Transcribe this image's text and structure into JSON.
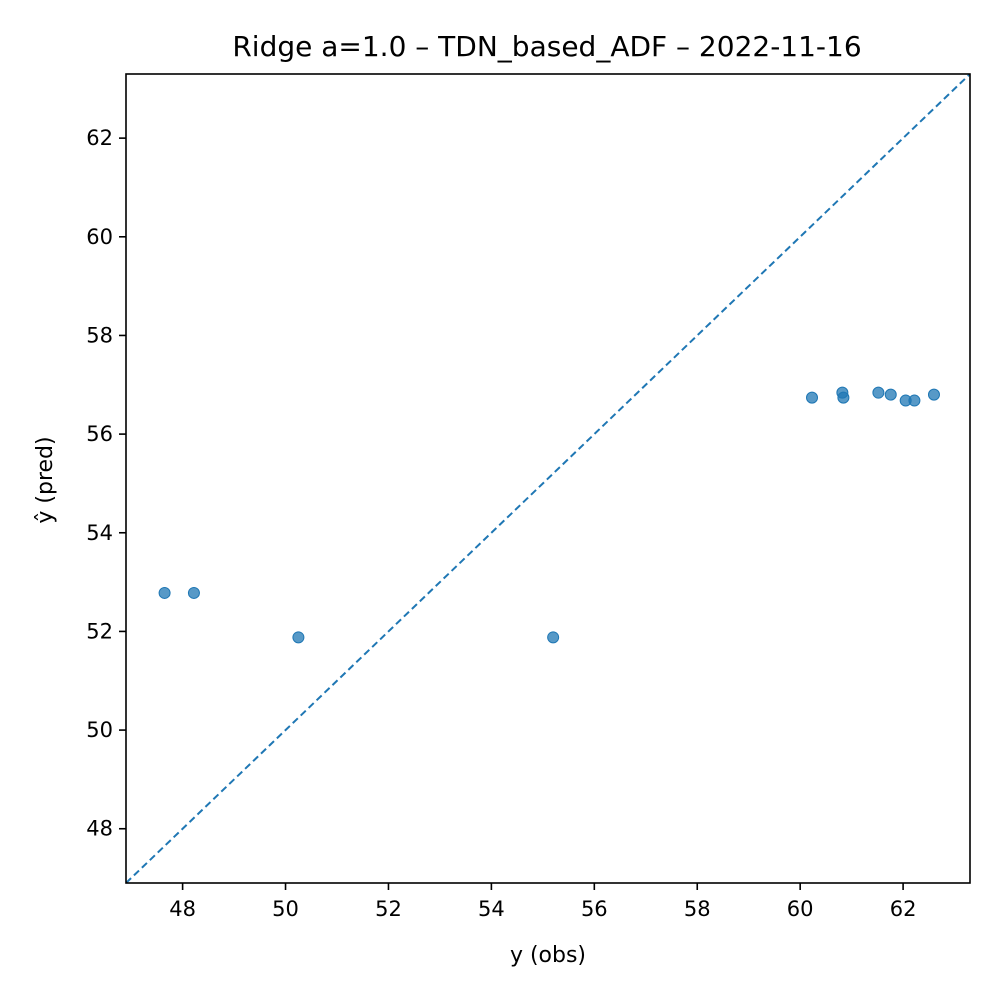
{
  "chart_data": {
    "type": "scatter",
    "title": "Ridge a=1.0 – TDN_based_ADF – 2022-11-16",
    "xlabel": "y (obs)",
    "ylabel": "ŷ (pred)",
    "xlim": [
      46.9,
      63.3
    ],
    "ylim": [
      46.9,
      63.3
    ],
    "xticks": [
      48,
      50,
      52,
      54,
      56,
      58,
      60,
      62
    ],
    "yticks": [
      48,
      50,
      52,
      54,
      56,
      58,
      60,
      62
    ],
    "grid": false,
    "reference_line": {
      "style": "dashed",
      "from": [
        46.9,
        46.9
      ],
      "to": [
        63.3,
        63.3
      ]
    },
    "series": [
      {
        "points": [
          {
            "x": 47.65,
            "y": 52.78
          },
          {
            "x": 48.22,
            "y": 52.78
          },
          {
            "x": 50.25,
            "y": 51.88
          },
          {
            "x": 55.2,
            "y": 51.88
          },
          {
            "x": 60.23,
            "y": 56.74
          },
          {
            "x": 60.82,
            "y": 56.84
          },
          {
            "x": 60.84,
            "y": 56.74
          },
          {
            "x": 61.52,
            "y": 56.84
          },
          {
            "x": 61.76,
            "y": 56.8
          },
          {
            "x": 62.05,
            "y": 56.68
          },
          {
            "x": 62.22,
            "y": 56.68
          },
          {
            "x": 62.6,
            "y": 56.8
          }
        ]
      }
    ]
  },
  "colors": {
    "points": "#1f77b4",
    "identity_line": "#1f77b4",
    "frame": "#000000"
  }
}
